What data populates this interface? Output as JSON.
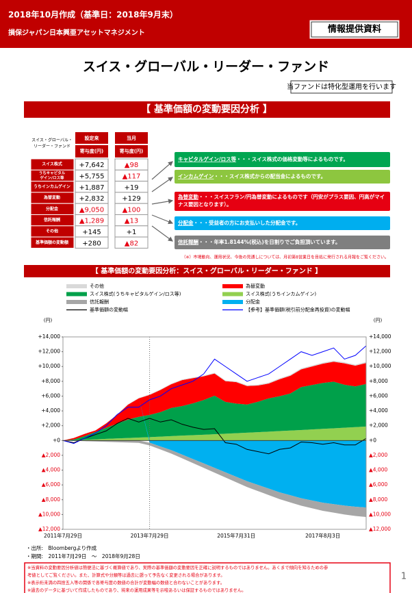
{
  "header": {
    "date": "2018年10月作成（基準日：2018年9月末）",
    "company": "損保ジャパン日本興亜アセットマネジメント",
    "badge": "情報提供資料"
  },
  "title": "スイス・グローバル・リーダー・ファンド",
  "notice": "当ファンドは特化型運用を行います",
  "section_title": "【 基準価額の変動要因分析 】",
  "table": {
    "corner": [
      "スイス・グローバル・",
      "リーダー・ファンド"
    ],
    "columns": [
      {
        "period": "設定来",
        "unit": "寄与度(円)"
      },
      {
        "period": "当月",
        "unit": "寄与度(円)"
      }
    ],
    "rows": [
      {
        "label": [
          "スイス株式"
        ],
        "values": [
          "+7,642",
          "▲98"
        ]
      },
      {
        "label": [
          "うちキャピタル",
          "ゲイン/ロス等"
        ],
        "values": [
          "+5,755",
          "▲117"
        ]
      },
      {
        "label": [
          "うちインカムゲイン"
        ],
        "values": [
          "+1,887",
          "+19"
        ]
      },
      {
        "label": [
          "為替変動"
        ],
        "values": [
          "+2,832",
          "+129"
        ]
      },
      {
        "label": [
          "分配金"
        ],
        "values": [
          "▲9,050",
          "▲100"
        ]
      },
      {
        "label": [
          "信託報酬"
        ],
        "values": [
          "▲1,289",
          "▲13"
        ]
      },
      {
        "label": [
          "その他"
        ],
        "values": [
          "+145",
          "+1"
        ]
      },
      {
        "label": [
          "基準価額の変動額"
        ],
        "values": [
          "+280",
          "▲82"
        ]
      }
    ]
  },
  "explanations": [
    {
      "term": "キャピタルゲイン/ロス等",
      "text": [
        "・・・スイス株式の価格変動等によるものです。"
      ],
      "color": "#00a651"
    },
    {
      "term": "インカムゲイン",
      "text": [
        "・・・スイス株式からの配当金によるものです。"
      ],
      "color": "#8dc63f"
    },
    {
      "term": "為替変動",
      "text": [
        "・・・スイスフラン/円為替変動によるものです（円安がプラス要因、円高がマイ",
        "ナス要因となります）。"
      ],
      "color": "#e60012"
    },
    {
      "term": "分配金",
      "text": [
        "・・・受益者の方にお支払いした分配金です。"
      ],
      "color": "#00aeef"
    },
    {
      "term": "信託報酬",
      "text": [
        "・・・年率1.8144%(税込)を日割りでご負担頂いています。"
      ],
      "color": "#7f7f7f"
    }
  ],
  "note": "（※）市場動向、運用状況、今後の見通しについては、月初第8営業日を目処に発行される月報をご覧ください。",
  "chart_data": {
    "type": "area",
    "title": "【 基準価額の変動要因分析：スイス・グローバル・リーダー・ファンド 】",
    "y_unit": "(円)",
    "categories": [
      "2011年7月29日",
      null,
      null,
      null,
      null,
      null,
      null,
      null,
      "2013年7月29日",
      null,
      null,
      null,
      null,
      null,
      null,
      null,
      "2015年7月31日",
      null,
      null,
      null,
      null,
      null,
      null,
      null,
      "2017年8月3日",
      null,
      null,
      null,
      null
    ],
    "ylim": [
      -12000,
      14000
    ],
    "yticks": [
      {
        "value": 14000,
        "label": "+14,000"
      },
      {
        "value": 12000,
        "label": "+12,000"
      },
      {
        "value": 10000,
        "label": "+10,000"
      },
      {
        "value": 8000,
        "label": "+8,000"
      },
      {
        "value": 6000,
        "label": "+6,000"
      },
      {
        "value": 4000,
        "label": "+4,000"
      },
      {
        "value": 2000,
        "label": "+2,000"
      },
      {
        "value": 0,
        "label": "+0"
      },
      {
        "value": -2000,
        "label": "▲2,000"
      },
      {
        "value": -4000,
        "label": "▲4,000"
      },
      {
        "value": -6000,
        "label": "▲6,000"
      },
      {
        "value": -8000,
        "label": "▲8,000"
      },
      {
        "value": -10000,
        "label": "▲10,000"
      },
      {
        "value": -12000,
        "label": "▲12,000"
      }
    ],
    "grid": false,
    "series": [
      {
        "name": "スイス株式(うちインカムゲイン)",
        "color": "#92d050",
        "style": "area",
        "values": [
          0,
          40,
          100,
          160,
          220,
          280,
          340,
          400,
          460,
          530,
          600,
          660,
          720,
          780,
          850,
          920,
          990,
          1060,
          1130,
          1200,
          1280,
          1350,
          1420,
          1500,
          1580,
          1650,
          1730,
          1810,
          1887
        ]
      },
      {
        "name": "スイス株式(うちキャピタルゲイン/ロス等)",
        "color": "#00a04a",
        "style": "area",
        "values": [
          0,
          100,
          500,
          1000,
          1500,
          2000,
          2500,
          2800,
          3000,
          3300,
          3800,
          4000,
          4300,
          4700,
          5200,
          4300,
          4000,
          3800,
          4100,
          4500,
          4700,
          5000,
          5800,
          6000,
          6200,
          6300,
          5800,
          5500,
          5755
        ]
      },
      {
        "name": "為替変動",
        "color": "#ff0000",
        "style": "area",
        "values": [
          0,
          200,
          300,
          200,
          600,
          1200,
          2000,
          2500,
          2700,
          3000,
          3200,
          3500,
          3400,
          3200,
          3000,
          2800,
          2900,
          2500,
          2200,
          2000,
          2300,
          2400,
          2400,
          2500,
          2600,
          2700,
          2900,
          2800,
          2832
        ]
      },
      {
        "name": "その他",
        "color": "#d9d9d9",
        "style": "area",
        "values": [
          0,
          10,
          20,
          30,
          40,
          50,
          60,
          70,
          75,
          80,
          85,
          90,
          95,
          100,
          105,
          110,
          112,
          115,
          118,
          120,
          123,
          126,
          130,
          133,
          136,
          139,
          141,
          143,
          145
        ]
      },
      {
        "name": "分配金",
        "color": "#00b0f0",
        "style": "area",
        "values": [
          0,
          0,
          0,
          0,
          0,
          0,
          0,
          0,
          -300,
          -800,
          -1300,
          -1900,
          -2500,
          -3100,
          -3700,
          -4300,
          -4900,
          -5500,
          -6000,
          -6500,
          -7000,
          -7400,
          -7800,
          -8100,
          -8400,
          -8600,
          -8800,
          -8950,
          -9050
        ]
      },
      {
        "name": "信託報酬",
        "color": "#a6a6a6",
        "style": "area",
        "values": [
          0,
          -46,
          -92,
          -138,
          -184,
          -230,
          -276,
          -322,
          -368,
          -414,
          -460,
          -506,
          -552,
          -598,
          -644,
          -690,
          -736,
          -782,
          -828,
          -874,
          -920,
          -966,
          -1012,
          -1058,
          -1104,
          -1150,
          -1196,
          -1242,
          -1289
        ]
      },
      {
        "name": "基準価額の変動幅",
        "color": "#000000",
        "style": "line",
        "values": [
          0,
          -300,
          300,
          800,
          1300,
          2300,
          3000,
          2500,
          3000,
          2500,
          2800,
          2200,
          1800,
          1500,
          1600,
          -300,
          -500,
          -1200,
          -1500,
          -1800,
          -1200,
          -1000,
          -200,
          -300,
          -500,
          -300,
          -600,
          -600,
          280
        ]
      },
      {
        "name": "【参考】基準価額(税引前分配金再投資)の変動幅",
        "color": "#0000ff",
        "style": "line",
        "values": [
          0,
          -400,
          300,
          1000,
          2000,
          3500,
          4500,
          4500,
          5500,
          6000,
          7000,
          7500,
          8000,
          9000,
          11000,
          10000,
          9000,
          8000,
          8500,
          9000,
          10000,
          11000,
          12000,
          11500,
          12000,
          12500,
          11000,
          11500,
          12800
        ]
      }
    ]
  },
  "footer": {
    "source": "・出所:　Bloombergより作成",
    "period": "・期間:　2011年7月29日　～　2018年9月28日",
    "disclaimer": [
      "※当資料の変動要因分析値は簡便法に基づく概算値であり、実際の基準価額の変動要因を正確に説明するものではありません。あくまで傾向を知るための参",
      "考値としてご覧ください。また、計算式や分類等は過去に遡って予告なく変更される場合があります。",
      "※表示桁未満の四捨五入等の関係で各寄与度の数値の合計が変動幅の数値と合わないことがあります。",
      "※過去のデータに基づいて作成したものであり、将来の運用成果等を示唆あるいは保証するものではありません。"
    ],
    "page": "1"
  }
}
